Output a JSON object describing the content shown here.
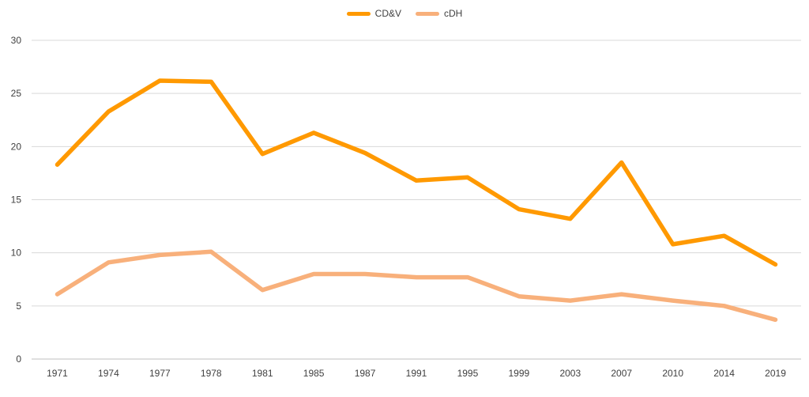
{
  "chart_data": {
    "type": "line",
    "title": "",
    "xlabel": "",
    "ylabel": "",
    "categories": [
      "1971",
      "1974",
      "1977",
      "1978",
      "1981",
      "1985",
      "1987",
      "1991",
      "1995",
      "1999",
      "2003",
      "2007",
      "2010",
      "2014",
      "2019"
    ],
    "ylim": [
      0,
      30
    ],
    "yticks": [
      0,
      5,
      10,
      15,
      20,
      25,
      30
    ],
    "grid": true,
    "legend_position": "top",
    "series": [
      {
        "name": "CD&V",
        "color": "#ff9900",
        "values": [
          18.3,
          23.3,
          26.2,
          26.1,
          19.3,
          21.3,
          19.4,
          16.8,
          17.1,
          14.1,
          13.2,
          18.5,
          10.8,
          11.6,
          8.9
        ]
      },
      {
        "name": "cDH",
        "color": "#f8b07b",
        "values": [
          6.1,
          9.1,
          9.8,
          10.1,
          6.5,
          8.0,
          8.0,
          7.7,
          7.7,
          5.9,
          5.5,
          6.1,
          5.5,
          5.0,
          3.7
        ]
      }
    ]
  }
}
